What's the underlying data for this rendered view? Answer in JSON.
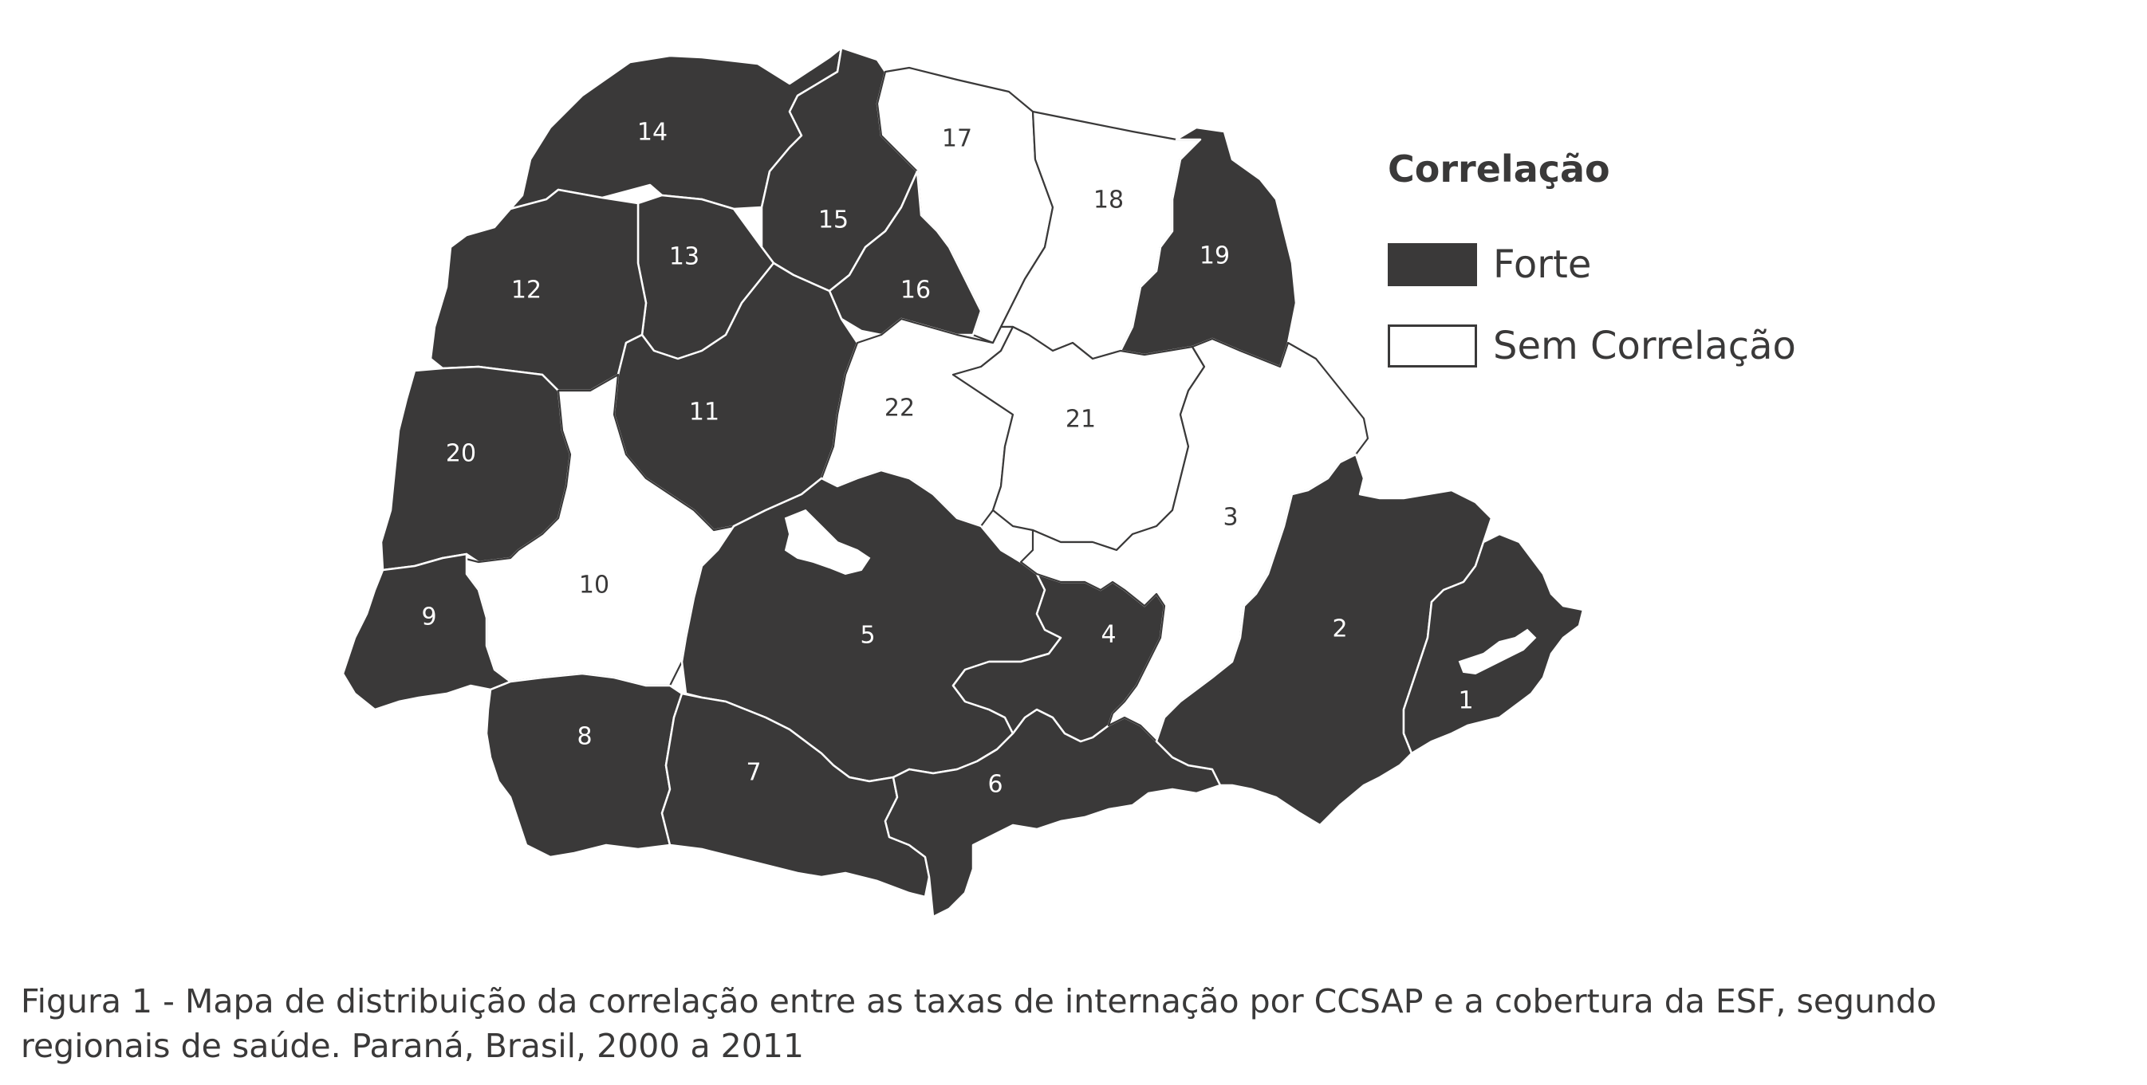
{
  "legend": {
    "title": "Correlação",
    "items": [
      {
        "label": "Forte",
        "color": "#3a3939"
      },
      {
        "label": "Sem Correlação",
        "color": "#ffffff"
      }
    ]
  },
  "regions": [
    {
      "id": "1",
      "class": "Forte"
    },
    {
      "id": "2",
      "class": "Forte"
    },
    {
      "id": "3",
      "class": "Sem Correlação"
    },
    {
      "id": "4",
      "class": "Forte"
    },
    {
      "id": "5",
      "class": "Forte"
    },
    {
      "id": "6",
      "class": "Forte"
    },
    {
      "id": "7",
      "class": "Forte"
    },
    {
      "id": "8",
      "class": "Forte"
    },
    {
      "id": "9",
      "class": "Forte"
    },
    {
      "id": "10",
      "class": "Sem Correlação"
    },
    {
      "id": "11",
      "class": "Forte"
    },
    {
      "id": "12",
      "class": "Forte"
    },
    {
      "id": "13",
      "class": "Forte"
    },
    {
      "id": "14",
      "class": "Forte"
    },
    {
      "id": "15",
      "class": "Forte"
    },
    {
      "id": "16",
      "class": "Forte"
    },
    {
      "id": "17",
      "class": "Sem Correlação"
    },
    {
      "id": "18",
      "class": "Sem Correlação"
    },
    {
      "id": "19",
      "class": "Forte"
    },
    {
      "id": "20",
      "class": "Forte"
    },
    {
      "id": "21",
      "class": "Sem Correlação"
    },
    {
      "id": "22",
      "class": "Sem Correlação"
    }
  ],
  "caption": {
    "line1": "Figura 1 - Mapa de distribuição da correlação entre as taxas de internação por CCSAP e a cobertura da ESF, segundo",
    "line2": "regionais de saúde. Paraná, Brasil, 2000 a 2011"
  },
  "colors": {
    "forte": "#3a3939",
    "sem": "#ffffff",
    "text": "#3a3939"
  }
}
